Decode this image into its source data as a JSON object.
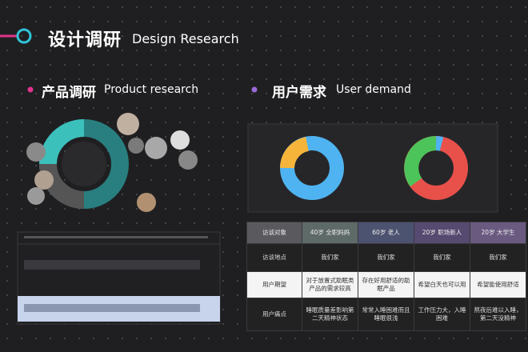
{
  "header": {
    "title": "设计调研",
    "subtitle": "Design Research"
  },
  "sections": [
    {
      "title": "产品调研",
      "subtitle": "Product research"
    },
    {
      "title": "用户需求",
      "subtitle": "User demand"
    }
  ],
  "table": {
    "rows": [
      [
        "访谈对象",
        "40岁 全职妈妈",
        "60岁 老人",
        "20岁 职场新人",
        "20岁 大学生"
      ],
      [
        "访谈地点",
        "我们家",
        "我们家",
        "我们家",
        "我们家"
      ],
      [
        "用户期望",
        "对于放置式助眠类产品的需求较高",
        "存在好用舒适的助眠产品",
        "希望白天也可以用",
        "希望能使用舒适"
      ],
      [
        "用户痛点",
        "睡眠质量差影响第二天精神状态",
        "常常入睡困难而且睡眠很浅",
        "工作压力大，入睡困难",
        "熬夜后难以入睡，第二天没精神"
      ]
    ]
  }
}
